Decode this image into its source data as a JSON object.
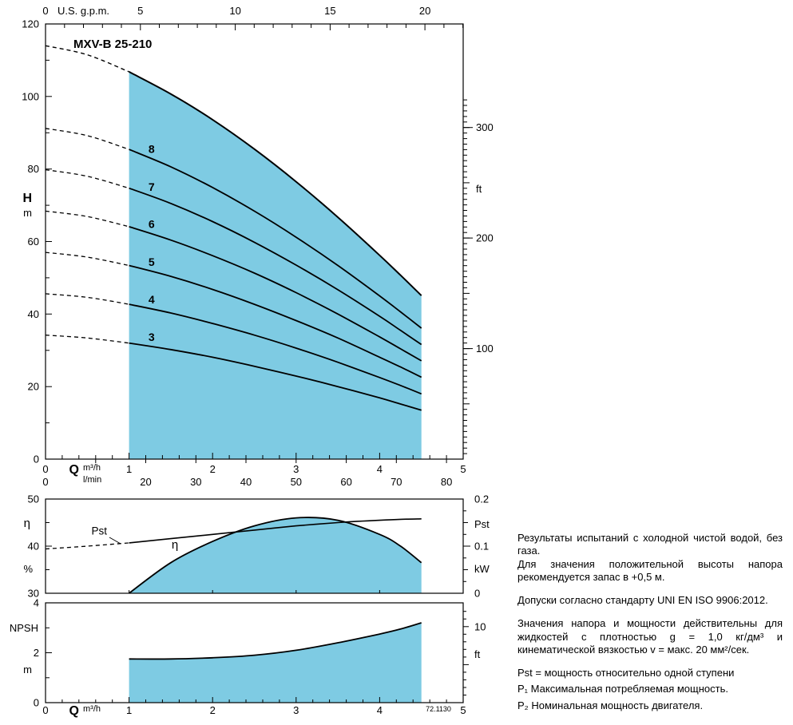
{
  "colors": {
    "fill_blue": "#7ecbe3",
    "curve": "#000000"
  },
  "notes": {
    "p1": "Результаты испытаний с холодной чистой водой, без газа.",
    "p2": "Для значения положительной высоты напора рекомендуется запас в +0,5 м.",
    "p3": "Допуски согласно стандарту UNI EN ISO 9906:2012.",
    "p4": "Значения напора и мощности действительны для жидкостей с плотностью g = 1,0 кг/дм³ и кинематической вязкостью v = макс. 20 мм²/сек.",
    "p5": "Pst = мощность относительно одной ступени",
    "p6": "P₁  Максимальная потребляемая мощность.",
    "p7": "P₂  Номинальная мощность двигателя."
  },
  "chart_data": [
    {
      "type": "area",
      "name": "pump-head-curves",
      "title": "MXV-B 25-210",
      "x_axis_top": {
        "zero": "0",
        "label": "U.S. g.p.m.",
        "ticks": [
          5,
          10,
          15,
          20
        ]
      },
      "y_axis_left": {
        "label": "H",
        "unit": "m",
        "ticks": [
          0,
          20,
          40,
          60,
          80,
          100,
          120
        ],
        "range": [
          0,
          120
        ]
      },
      "y_axis_right": {
        "unit": "ft",
        "ticks": [
          100,
          200,
          300
        ]
      },
      "x_axis_bottom": {
        "label": "Q",
        "unit_primary": "m³/h",
        "unit_secondary": "l/min",
        "ticks_m3h": [
          0,
          1,
          2,
          3,
          4,
          5
        ],
        "ticks_lmin": [
          0,
          20,
          30,
          40,
          50,
          60,
          70,
          80
        ],
        "range_m3h": [
          0,
          5
        ]
      },
      "operating_range_m3h": [
        1,
        4.5
      ],
      "envelope": {
        "dashed": [
          [
            0,
            114
          ],
          [
            0.5,
            111.5
          ],
          [
            1,
            106.8
          ]
        ],
        "solid": [
          [
            1,
            106.8
          ],
          [
            1.5,
            100.7
          ],
          [
            2,
            93.6
          ],
          [
            2.5,
            85.5
          ],
          [
            3,
            76.5
          ],
          [
            3.5,
            66.7
          ],
          [
            4,
            56.2
          ],
          [
            4.25,
            50.7
          ],
          [
            4.5,
            45.1
          ]
        ]
      },
      "curves": [
        {
          "label": "8",
          "label_at": [
            1.27,
            84.4
          ],
          "dashed": [
            [
              0,
              91.2
            ],
            [
              0.5,
              89.2
            ],
            [
              1,
              85.4
            ]
          ],
          "solid": [
            [
              1,
              85.4
            ],
            [
              1.5,
              80.6
            ],
            [
              2,
              74.9
            ],
            [
              2.5,
              68.4
            ],
            [
              3,
              61.2
            ],
            [
              3.5,
              53.4
            ],
            [
              4,
              45
            ],
            [
              4.25,
              40.6
            ],
            [
              4.5,
              36.1
            ]
          ]
        },
        {
          "label": "7",
          "label_at": [
            1.27,
            74
          ],
          "dashed": [
            [
              0,
              79.8
            ],
            [
              0.5,
              78
            ],
            [
              1,
              74.7
            ]
          ],
          "solid": [
            [
              1,
              74.7
            ],
            [
              1.5,
              70.5
            ],
            [
              2,
              65.5
            ],
            [
              2.5,
              59.8
            ],
            [
              3,
              53.5
            ],
            [
              3.5,
              46.7
            ],
            [
              4,
              39.4
            ],
            [
              4.25,
              35.5
            ],
            [
              4.5,
              31.6
            ]
          ]
        },
        {
          "label": "6",
          "label_at": [
            1.27,
            63.7
          ],
          "dashed": [
            [
              0,
              68.4
            ],
            [
              0.5,
              66.9
            ],
            [
              1,
              64.1
            ]
          ],
          "solid": [
            [
              1,
              64.1
            ],
            [
              1.5,
              60.4
            ],
            [
              2,
              56.1
            ],
            [
              2.5,
              51.3
            ],
            [
              3,
              45.9
            ],
            [
              3.5,
              40
            ],
            [
              4,
              33.7
            ],
            [
              4.25,
              30.4
            ],
            [
              4.5,
              27.1
            ]
          ]
        },
        {
          "label": "5",
          "label_at": [
            1.27,
            53.3
          ],
          "dashed": [
            [
              0,
              57
            ],
            [
              0.5,
              55.7
            ],
            [
              1,
              53.4
            ]
          ],
          "solid": [
            [
              1,
              53.4
            ],
            [
              1.5,
              50.4
            ],
            [
              2,
              46.8
            ],
            [
              2.5,
              42.7
            ],
            [
              3,
              38.2
            ],
            [
              3.5,
              33.4
            ],
            [
              4,
              28.1
            ],
            [
              4.25,
              25.4
            ],
            [
              4.5,
              22.6
            ]
          ]
        },
        {
          "label": "4",
          "label_at": [
            1.27,
            42.9
          ],
          "dashed": [
            [
              0,
              45.6
            ],
            [
              0.5,
              44.6
            ],
            [
              1,
              42.7
            ]
          ],
          "solid": [
            [
              1,
              42.7
            ],
            [
              1.5,
              40.3
            ],
            [
              2,
              37.4
            ],
            [
              2.5,
              34.2
            ],
            [
              3,
              30.6
            ],
            [
              3.5,
              26.7
            ],
            [
              4,
              22.5
            ],
            [
              4.25,
              20.3
            ],
            [
              4.5,
              18
            ]
          ]
        },
        {
          "label": "3",
          "label_at": [
            1.27,
            32.6
          ],
          "dashed": [
            [
              0,
              34.2
            ],
            [
              0.5,
              33.4
            ],
            [
              1,
              32
            ]
          ],
          "solid": [
            [
              1,
              32
            ],
            [
              1.5,
              30.2
            ],
            [
              2,
              28.1
            ],
            [
              2.5,
              25.6
            ],
            [
              3,
              22.9
            ],
            [
              3.5,
              20
            ],
            [
              4,
              16.9
            ],
            [
              4.25,
              15.2
            ],
            [
              4.5,
              13.5
            ]
          ]
        }
      ]
    },
    {
      "type": "line",
      "name": "efficiency-and-power",
      "y_axis_left": {
        "label": "η",
        "unit": "%",
        "ticks": [
          50,
          40,
          30
        ],
        "range": [
          30,
          50
        ]
      },
      "y_axis_right": {
        "label": "Pst",
        "unit": "kW",
        "ticks": [
          {
            "label": "0.2",
            "value": 0.2
          },
          {
            "label": "0.1",
            "value": 0.1
          },
          {
            "label": "0",
            "value": 0
          }
        ],
        "range": [
          0,
          0.2
        ]
      },
      "eta_curve": {
        "label": "η",
        "label_at": [
          1.55,
          39.5
        ],
        "solid": [
          [
            1,
            30
          ],
          [
            1.5,
            36.5
          ],
          [
            2,
            41
          ],
          [
            2.5,
            44.3
          ],
          [
            3,
            46
          ],
          [
            3.5,
            45.5
          ],
          [
            4,
            42.5
          ],
          [
            4.25,
            40
          ],
          [
            4.5,
            36.5
          ]
        ]
      },
      "pst_curve": {
        "label": "Pst",
        "label_at": [
          0.55,
          0.125
        ],
        "dashed": [
          [
            0,
            0.094
          ],
          [
            0.5,
            0.1
          ],
          [
            1,
            0.107
          ]
        ],
        "solid": [
          [
            1,
            0.107
          ],
          [
            1.5,
            0.116
          ],
          [
            2,
            0.125
          ],
          [
            2.5,
            0.134
          ],
          [
            3,
            0.143
          ],
          [
            3.5,
            0.15
          ],
          [
            4,
            0.155
          ],
          [
            4.25,
            0.157
          ],
          [
            4.5,
            0.158
          ]
        ]
      }
    },
    {
      "type": "area",
      "name": "npsh-curve",
      "y_axis_left": {
        "label": "NPSH",
        "unit": "m",
        "ticks": [
          4,
          2,
          0
        ],
        "range": [
          0,
          4
        ]
      },
      "y_axis_right": {
        "unit": "ft",
        "ticks": [
          {
            "label": "10",
            "value_ft": 10
          }
        ]
      },
      "x_axis_bottom": {
        "label": "Q",
        "unit_primary": "m³/h",
        "ticks": [
          0,
          1,
          2,
          3,
          4,
          5
        ]
      },
      "curve": [
        [
          1,
          1.75
        ],
        [
          1.5,
          1.75
        ],
        [
          2,
          1.8
        ],
        [
          2.5,
          1.9
        ],
        [
          3,
          2.1
        ],
        [
          3.5,
          2.4
        ],
        [
          4,
          2.75
        ],
        [
          4.25,
          2.95
        ],
        [
          4.5,
          3.2
        ]
      ],
      "code": "72.1130"
    }
  ]
}
